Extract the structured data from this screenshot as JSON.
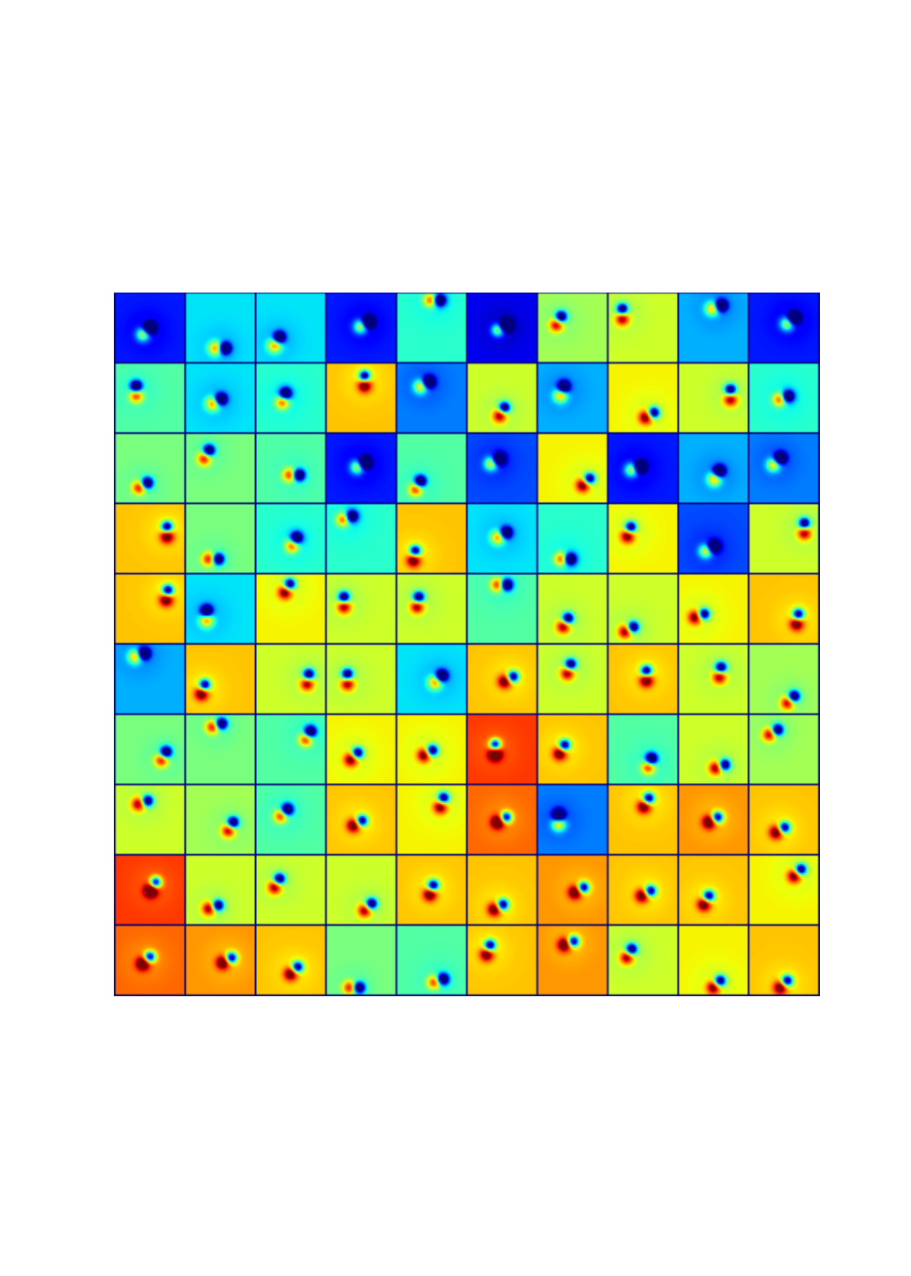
{
  "chart_data": {
    "type": "image_grid",
    "tick_labels": false,
    "value_range": [
      0,
      1
    ],
    "tiles": [
      [
        {
          "level": 0.15,
          "x": 0.45,
          "y": 0.55,
          "angle": 45
        },
        {
          "level": 0.35,
          "x": 0.5,
          "y": 0.8,
          "angle": 0
        },
        {
          "level": 0.35,
          "x": 0.3,
          "y": 0.7,
          "angle": 60
        },
        {
          "level": 0.15,
          "x": 0.55,
          "y": 0.45,
          "angle": 30
        },
        {
          "level": 0.4,
          "x": 0.55,
          "y": 0.1,
          "angle": 0
        },
        {
          "level": 0.1,
          "x": 0.5,
          "y": 0.5,
          "angle": 30
        },
        {
          "level": 0.55,
          "x": 0.3,
          "y": 0.4,
          "angle": 60
        },
        {
          "level": 0.6,
          "x": 0.2,
          "y": 0.3,
          "angle": 90
        },
        {
          "level": 0.3,
          "x": 0.55,
          "y": 0.2,
          "angle": 20
        },
        {
          "level": 0.15,
          "x": 0.6,
          "y": 0.4,
          "angle": 40
        }
      ],
      [
        {
          "level": 0.45,
          "x": 0.3,
          "y": 0.4,
          "angle": 90
        },
        {
          "level": 0.35,
          "x": 0.45,
          "y": 0.55,
          "angle": 30
        },
        {
          "level": 0.4,
          "x": 0.4,
          "y": 0.5,
          "angle": 70
        },
        {
          "level": 0.7,
          "x": 0.55,
          "y": 0.25,
          "angle": 90
        },
        {
          "level": 0.25,
          "x": 0.4,
          "y": 0.3,
          "angle": 30
        },
        {
          "level": 0.6,
          "x": 0.5,
          "y": 0.7,
          "angle": 60
        },
        {
          "level": 0.3,
          "x": 0.35,
          "y": 0.4,
          "angle": 70
        },
        {
          "level": 0.65,
          "x": 0.6,
          "y": 0.75,
          "angle": 30
        },
        {
          "level": 0.6,
          "x": 0.75,
          "y": 0.45,
          "angle": 90
        },
        {
          "level": 0.4,
          "x": 0.5,
          "y": 0.5,
          "angle": 20
        }
      ],
      [
        {
          "level": 0.5,
          "x": 0.4,
          "y": 0.75,
          "angle": 30
        },
        {
          "level": 0.5,
          "x": 0.3,
          "y": 0.3,
          "angle": 60
        },
        {
          "level": 0.45,
          "x": 0.55,
          "y": 0.6,
          "angle": 0
        },
        {
          "level": 0.15,
          "x": 0.5,
          "y": 0.45,
          "angle": 30
        },
        {
          "level": 0.45,
          "x": 0.3,
          "y": 0.75,
          "angle": 60
        },
        {
          "level": 0.2,
          "x": 0.4,
          "y": 0.4,
          "angle": 30
        },
        {
          "level": 0.65,
          "x": 0.7,
          "y": 0.7,
          "angle": 45
        },
        {
          "level": 0.15,
          "x": 0.4,
          "y": 0.5,
          "angle": 20
        },
        {
          "level": 0.3,
          "x": 0.55,
          "y": 0.6,
          "angle": 60
        },
        {
          "level": 0.25,
          "x": 0.4,
          "y": 0.4,
          "angle": 45
        }
      ],
      [
        {
          "level": 0.7,
          "x": 0.75,
          "y": 0.4,
          "angle": 90
        },
        {
          "level": 0.5,
          "x": 0.4,
          "y": 0.8,
          "angle": 0
        },
        {
          "level": 0.4,
          "x": 0.55,
          "y": 0.55,
          "angle": 60
        },
        {
          "level": 0.4,
          "x": 0.3,
          "y": 0.2,
          "angle": 20
        },
        {
          "level": 0.7,
          "x": 0.25,
          "y": 0.75,
          "angle": 80
        },
        {
          "level": 0.35,
          "x": 0.5,
          "y": 0.45,
          "angle": 30
        },
        {
          "level": 0.4,
          "x": 0.4,
          "y": 0.8,
          "angle": 0
        },
        {
          "level": 0.65,
          "x": 0.3,
          "y": 0.4,
          "angle": 70
        },
        {
          "level": 0.2,
          "x": 0.45,
          "y": 0.65,
          "angle": 30
        },
        {
          "level": 0.6,
          "x": 0.8,
          "y": 0.35,
          "angle": 90
        }
      ],
      [
        {
          "level": 0.7,
          "x": 0.75,
          "y": 0.3,
          "angle": 80
        },
        {
          "level": 0.35,
          "x": 0.3,
          "y": 0.6,
          "angle": 90
        },
        {
          "level": 0.65,
          "x": 0.45,
          "y": 0.2,
          "angle": 60
        },
        {
          "level": 0.6,
          "x": 0.25,
          "y": 0.4,
          "angle": 90
        },
        {
          "level": 0.6,
          "x": 0.3,
          "y": 0.4,
          "angle": 80
        },
        {
          "level": 0.45,
          "x": 0.5,
          "y": 0.15,
          "angle": 0
        },
        {
          "level": 0.6,
          "x": 0.4,
          "y": 0.7,
          "angle": 60
        },
        {
          "level": 0.6,
          "x": 0.3,
          "y": 0.8,
          "angle": 30
        },
        {
          "level": 0.65,
          "x": 0.3,
          "y": 0.6,
          "angle": 20
        },
        {
          "level": 0.7,
          "x": 0.7,
          "y": 0.65,
          "angle": 80
        }
      ],
      [
        {
          "level": 0.3,
          "x": 0.35,
          "y": 0.15,
          "angle": 20
        },
        {
          "level": 0.7,
          "x": 0.25,
          "y": 0.65,
          "angle": 70
        },
        {
          "level": 0.6,
          "x": 0.75,
          "y": 0.5,
          "angle": 80
        },
        {
          "level": 0.6,
          "x": 0.3,
          "y": 0.5,
          "angle": 90
        },
        {
          "level": 0.35,
          "x": 0.6,
          "y": 0.5,
          "angle": 45
        },
        {
          "level": 0.7,
          "x": 0.6,
          "y": 0.5,
          "angle": 30
        },
        {
          "level": 0.6,
          "x": 0.45,
          "y": 0.35,
          "angle": 70
        },
        {
          "level": 0.7,
          "x": 0.55,
          "y": 0.45,
          "angle": 90
        },
        {
          "level": 0.6,
          "x": 0.6,
          "y": 0.4,
          "angle": 80
        },
        {
          "level": 0.55,
          "x": 0.6,
          "y": 0.8,
          "angle": 45
        }
      ],
      [
        {
          "level": 0.5,
          "x": 0.7,
          "y": 0.6,
          "angle": 60
        },
        {
          "level": 0.5,
          "x": 0.45,
          "y": 0.15,
          "angle": 20
        },
        {
          "level": 0.45,
          "x": 0.75,
          "y": 0.3,
          "angle": 60
        },
        {
          "level": 0.65,
          "x": 0.4,
          "y": 0.6,
          "angle": 45
        },
        {
          "level": 0.65,
          "x": 0.45,
          "y": 0.55,
          "angle": 30
        },
        {
          "level": 0.85,
          "x": 0.4,
          "y": 0.5,
          "angle": 90
        },
        {
          "level": 0.7,
          "x": 0.35,
          "y": 0.5,
          "angle": 60
        },
        {
          "level": 0.45,
          "x": 0.6,
          "y": 0.7,
          "angle": 70
        },
        {
          "level": 0.6,
          "x": 0.6,
          "y": 0.75,
          "angle": 20
        },
        {
          "level": 0.55,
          "x": 0.35,
          "y": 0.25,
          "angle": 30
        }
      ],
      [
        {
          "level": 0.6,
          "x": 0.4,
          "y": 0.25,
          "angle": 20
        },
        {
          "level": 0.55,
          "x": 0.65,
          "y": 0.6,
          "angle": 60
        },
        {
          "level": 0.45,
          "x": 0.4,
          "y": 0.4,
          "angle": 45
        },
        {
          "level": 0.7,
          "x": 0.45,
          "y": 0.55,
          "angle": 30
        },
        {
          "level": 0.65,
          "x": 0.65,
          "y": 0.25,
          "angle": 70
        },
        {
          "level": 0.8,
          "x": 0.5,
          "y": 0.5,
          "angle": 30
        },
        {
          "level": 0.25,
          "x": 0.3,
          "y": 0.5,
          "angle": 90
        },
        {
          "level": 0.7,
          "x": 0.55,
          "y": 0.25,
          "angle": 60
        },
        {
          "level": 0.75,
          "x": 0.5,
          "y": 0.5,
          "angle": 30
        },
        {
          "level": 0.7,
          "x": 0.45,
          "y": 0.65,
          "angle": 30
        }
      ],
      [
        {
          "level": 0.85,
          "x": 0.55,
          "y": 0.45,
          "angle": 60
        },
        {
          "level": 0.6,
          "x": 0.4,
          "y": 0.75,
          "angle": 20
        },
        {
          "level": 0.6,
          "x": 0.3,
          "y": 0.4,
          "angle": 60
        },
        {
          "level": 0.6,
          "x": 0.6,
          "y": 0.75,
          "angle": 45
        },
        {
          "level": 0.7,
          "x": 0.5,
          "y": 0.5,
          "angle": 70
        },
        {
          "level": 0.7,
          "x": 0.45,
          "y": 0.75,
          "angle": 30
        },
        {
          "level": 0.75,
          "x": 0.6,
          "y": 0.5,
          "angle": 30
        },
        {
          "level": 0.7,
          "x": 0.55,
          "y": 0.55,
          "angle": 30
        },
        {
          "level": 0.7,
          "x": 0.4,
          "y": 0.65,
          "angle": 60
        },
        {
          "level": 0.65,
          "x": 0.7,
          "y": 0.25,
          "angle": 45
        }
      ],
      [
        {
          "level": 0.8,
          "x": 0.45,
          "y": 0.5,
          "angle": 45
        },
        {
          "level": 0.75,
          "x": 0.6,
          "y": 0.5,
          "angle": 30
        },
        {
          "level": 0.7,
          "x": 0.55,
          "y": 0.65,
          "angle": 45
        },
        {
          "level": 0.5,
          "x": 0.4,
          "y": 0.9,
          "angle": 0
        },
        {
          "level": 0.45,
          "x": 0.6,
          "y": 0.8,
          "angle": 20
        },
        {
          "level": 0.7,
          "x": 0.3,
          "y": 0.35,
          "angle": 70
        },
        {
          "level": 0.75,
          "x": 0.45,
          "y": 0.25,
          "angle": 20
        },
        {
          "level": 0.6,
          "x": 0.3,
          "y": 0.4,
          "angle": 60
        },
        {
          "level": 0.65,
          "x": 0.55,
          "y": 0.85,
          "angle": 45
        },
        {
          "level": 0.7,
          "x": 0.5,
          "y": 0.85,
          "angle": 45
        }
      ]
    ]
  }
}
